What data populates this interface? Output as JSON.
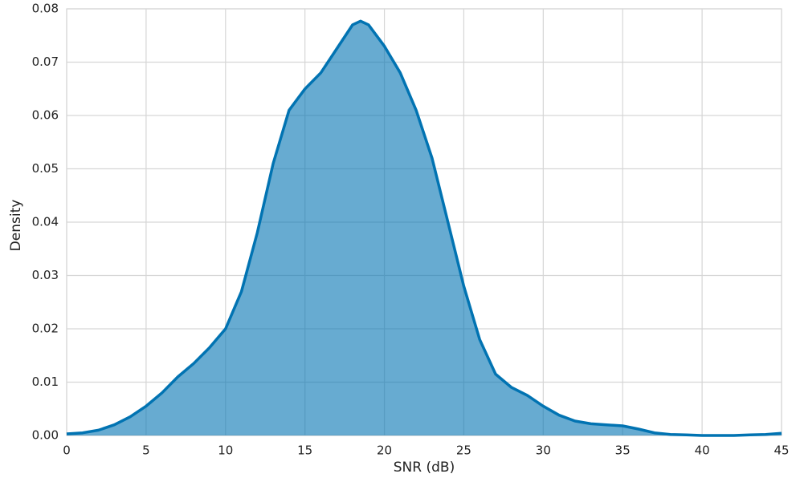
{
  "chart_data": {
    "type": "area",
    "xlabel": "SNR (dB)",
    "ylabel": "Density",
    "x": [
      0,
      1,
      2,
      3,
      4,
      5,
      6,
      7,
      8,
      9,
      10,
      11,
      12,
      13,
      14,
      15,
      16,
      17,
      18,
      18.5,
      19,
      20,
      21,
      22,
      23,
      24,
      25,
      26,
      27,
      28,
      29,
      30,
      31,
      32,
      33,
      34,
      35,
      36,
      37,
      38,
      39,
      40,
      41,
      42,
      43,
      44,
      45
    ],
    "series": [
      {
        "color": "#0173b2",
        "values": [
          0.0003,
          0.0005,
          0.001,
          0.002,
          0.0035,
          0.0055,
          0.008,
          0.011,
          0.0135,
          0.0165,
          0.02,
          0.027,
          0.038,
          0.051,
          0.061,
          0.065,
          0.068,
          0.0725,
          0.077,
          0.0777,
          0.077,
          0.073,
          0.068,
          0.061,
          0.052,
          0.04,
          0.028,
          0.018,
          0.0115,
          0.009,
          0.0075,
          0.0055,
          0.0038,
          0.0027,
          0.0022,
          0.002,
          0.0018,
          0.0012,
          0.0005,
          0.0002,
          0.0001,
          0,
          0,
          0,
          0.0001,
          0.0002,
          0.0004
        ]
      }
    ],
    "xlim": [
      0,
      45
    ],
    "xticks": [
      0,
      5,
      10,
      15,
      20,
      25,
      30,
      35,
      40,
      45
    ],
    "ylim": [
      0,
      0.08
    ],
    "yticks": [
      {
        "value": 0,
        "label": "0.00"
      },
      0.01,
      0.02,
      0.03,
      0.04,
      0.05,
      0.06,
      0.07,
      0.08
    ],
    "grid": true
  }
}
